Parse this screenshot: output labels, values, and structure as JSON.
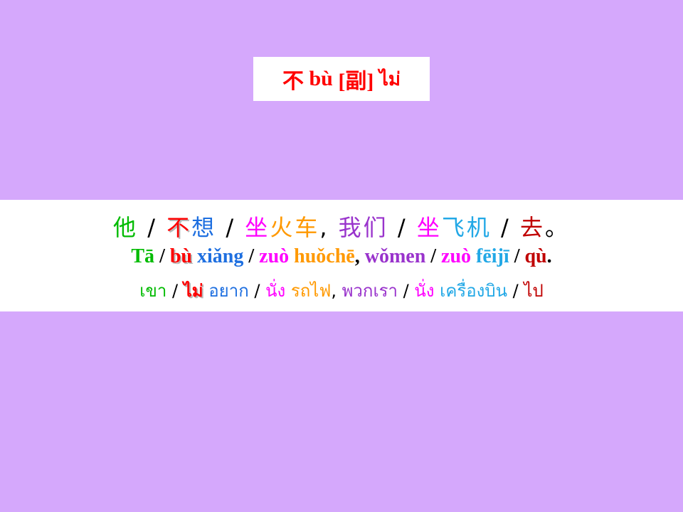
{
  "title": {
    "hanzi": "不",
    "pinyin": "bù",
    "pos": "[副]",
    "thai": "ไม่"
  },
  "sentence": {
    "hanzi": [
      {
        "text": "他",
        "color": "#00bb00"
      },
      {
        "text": " / ",
        "color": "#000000"
      },
      {
        "text": "不",
        "color": "#ff0000"
      },
      {
        "text": "想",
        "color": "#1e6fe0"
      },
      {
        "text": " / ",
        "color": "#000000"
      },
      {
        "text": "坐",
        "color": "#ff00ff"
      },
      {
        "text": "火车",
        "color": "#ff9900"
      },
      {
        "text": ", ",
        "color": "#000000"
      },
      {
        "text": "我们",
        "color": "#9933cc"
      },
      {
        "text": " / ",
        "color": "#000000"
      },
      {
        "text": "坐",
        "color": "#ff00ff"
      },
      {
        "text": "飞机",
        "color": "#22a8e6"
      },
      {
        "text": " / ",
        "color": "#000000"
      },
      {
        "text": "去",
        "color": "#c00000"
      },
      {
        "text": "。",
        "color": "#000000"
      }
    ],
    "pinyin": [
      {
        "text": "Tā",
        "color": "#00bb00"
      },
      {
        "text": " / ",
        "color": "#000000"
      },
      {
        "text": "bù",
        "color": "#ff0000"
      },
      {
        "text": " xiǎng",
        "color": "#1e6fe0"
      },
      {
        "text": " / ",
        "color": "#000000"
      },
      {
        "text": "zuò",
        "color": "#ff00ff"
      },
      {
        "text": " huǒchē",
        "color": "#ff9900"
      },
      {
        "text": ", ",
        "color": "#000000"
      },
      {
        "text": "wǒmen",
        "color": "#9933cc"
      },
      {
        "text": "  / ",
        "color": "#000000"
      },
      {
        "text": "zuò",
        "color": "#ff00ff"
      },
      {
        "text": " fēijī",
        "color": "#22a8e6"
      },
      {
        "text": " / ",
        "color": "#000000"
      },
      {
        "text": "qù",
        "color": "#c00000"
      },
      {
        "text": ".",
        "color": "#000000"
      }
    ],
    "thai": [
      {
        "text": "เขา",
        "color": "#00bb00"
      },
      {
        "text": " / ",
        "color": "#000000"
      },
      {
        "text": "ไม่",
        "color": "#ff0000"
      },
      {
        "text": " อยาก",
        "color": "#1e6fe0"
      },
      {
        "text": " / ",
        "color": "#000000"
      },
      {
        "text": "นั่ง",
        "color": "#ff00ff"
      },
      {
        "text": " รถไฟ",
        "color": "#ff9900"
      },
      {
        "text": ", ",
        "color": "#000000"
      },
      {
        "text": "พวกเรา",
        "color": "#9933cc"
      },
      {
        "text": " / ",
        "color": "#000000"
      },
      {
        "text": "นั่ง",
        "color": "#ff00ff"
      },
      {
        "text": " เครื่องบิน",
        "color": "#22a8e6"
      },
      {
        "text": " / ",
        "color": "#000000"
      },
      {
        "text": "ไป",
        "color": "#c00000"
      }
    ]
  }
}
